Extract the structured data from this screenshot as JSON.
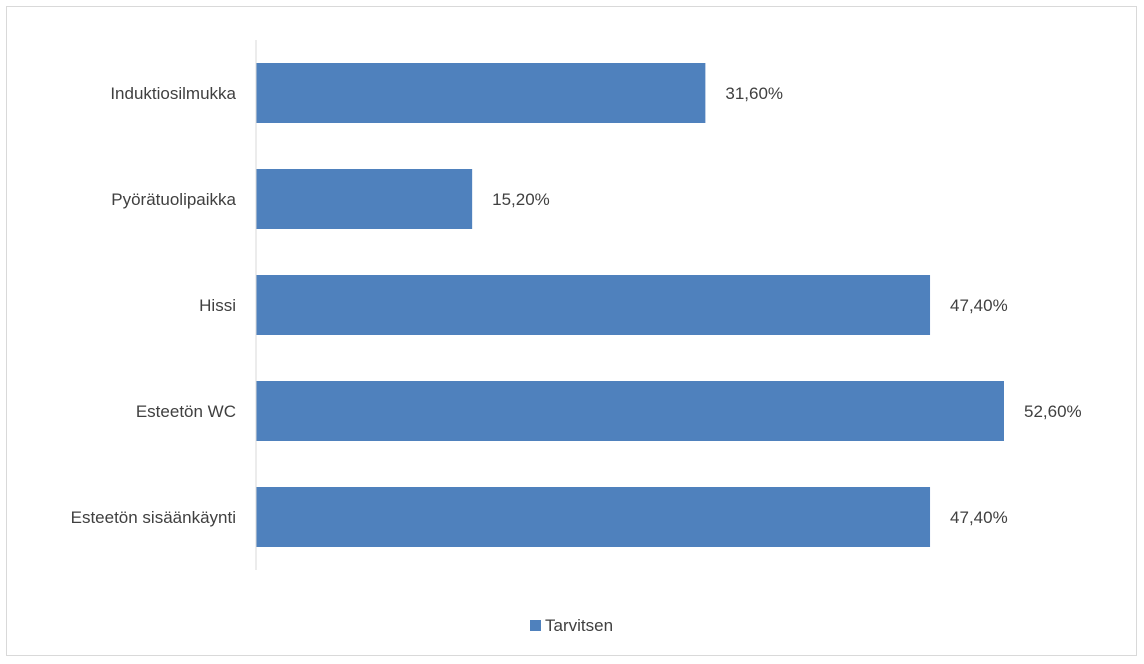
{
  "chart_data": {
    "type": "bar",
    "orientation": "horizontal",
    "categories": [
      "Induktiosilmukka",
      "Pyörätuolipaikka",
      "Hissi",
      "Esteetön WC",
      "Esteetön sisäänkäynti"
    ],
    "series": [
      {
        "name": "Tarvitsen",
        "values": [
          31.6,
          15.2,
          47.4,
          52.6,
          47.4
        ],
        "labels": [
          "31,60%",
          "15,20%",
          "47,40%",
          "52,60%",
          "47,40%"
        ],
        "color": "#4f81bd"
      }
    ],
    "title": "",
    "xlabel": "",
    "ylabel": "",
    "xlim": [
      0,
      60
    ],
    "grid": false,
    "legend_position": "bottom"
  }
}
